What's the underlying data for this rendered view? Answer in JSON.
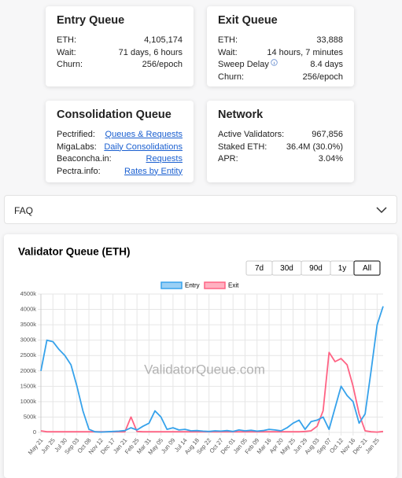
{
  "cards": [
    {
      "title": "Entry Queue",
      "rows": [
        [
          "ETH:",
          "4,105,174"
        ],
        [
          "Wait:",
          "71 days, 6 hours"
        ],
        [
          "Churn:",
          "256/epoch"
        ]
      ]
    },
    {
      "title": "Exit Queue",
      "rows": [
        [
          "ETH:",
          "33,888"
        ],
        [
          "Wait:",
          "14 hours, 7 minutes"
        ],
        [
          "Sweep Delay",
          "8.4 days"
        ],
        [
          "Churn:",
          "256/epoch"
        ]
      ]
    },
    {
      "title": "Consolidation Queue",
      "rows": [
        [
          "Pectrified:",
          "Queues & Requests"
        ],
        [
          "MigaLabs:",
          "Daily Consolidations"
        ],
        [
          "Beaconcha.in:",
          "Requests"
        ],
        [
          "Pectra.info:",
          "Rates by Entity"
        ]
      ]
    },
    {
      "title": "Network",
      "rows": [
        [
          "Active Validators:",
          "967,856"
        ],
        [
          "Staked ETH:",
          "36.4M (30.0%)"
        ],
        [
          "APR:",
          "3.04%"
        ]
      ]
    }
  ],
  "faq": {
    "label": "FAQ"
  },
  "chart_data": {
    "type": "line",
    "title": "Validator Queue (ETH)",
    "range_buttons": [
      "7d",
      "30d",
      "90d",
      "1y",
      "All"
    ],
    "selected_range": "All",
    "watermark": "ValidatorQueue.com",
    "categories": [
      "May 21",
      null,
      "Jun 25",
      null,
      "Jul 30",
      null,
      "Sep 03",
      null,
      "Oct 08",
      null,
      "Nov 12",
      null,
      "Dec 17",
      null,
      "Jan 21",
      null,
      "Feb 25",
      null,
      "Mar 31",
      null,
      "May 05",
      null,
      "Jun 09",
      null,
      "Jul 14",
      null,
      "Aug 18",
      null,
      "Sep 22",
      null,
      "Oct 27",
      null,
      "Dec 01",
      null,
      "Jan 05",
      null,
      "Feb 09",
      null,
      "Mar 16",
      null,
      "Apr 20",
      null,
      "May 25",
      null,
      "Jun 29",
      null,
      "Aug 03",
      null,
      "Sep 07",
      null,
      "Oct 12",
      null,
      "Nov 16",
      null,
      "Dec 21",
      null,
      "Jan 25",
      null
    ],
    "series": [
      {
        "name": "Entry",
        "color": "#36a2eb",
        "values": [
          2000000,
          3000000,
          2950000,
          2700000,
          2500000,
          2200000,
          1500000,
          700000,
          100000,
          20000,
          10000,
          20000,
          30000,
          40000,
          60000,
          150000,
          80000,
          200000,
          300000,
          700000,
          500000,
          100000,
          150000,
          80000,
          100000,
          50000,
          60000,
          40000,
          30000,
          50000,
          40000,
          60000,
          30000,
          80000,
          50000,
          70000,
          40000,
          60000,
          100000,
          80000,
          50000,
          150000,
          300000,
          400000,
          100000,
          350000,
          400000,
          500000,
          100000,
          800000,
          1500000,
          1200000,
          1000000,
          300000,
          600000,
          2000000,
          3500000,
          4100000
        ]
      },
      {
        "name": "Exit",
        "color": "#ff6384",
        "values": [
          50000,
          20000,
          20000,
          20000,
          20000,
          20000,
          20000,
          20000,
          20000,
          20000,
          20000,
          20000,
          20000,
          20000,
          20000,
          500000,
          30000,
          20000,
          20000,
          20000,
          20000,
          20000,
          20000,
          20000,
          20000,
          20000,
          20000,
          20000,
          20000,
          20000,
          20000,
          20000,
          20000,
          20000,
          20000,
          20000,
          20000,
          20000,
          20000,
          20000,
          20000,
          20000,
          20000,
          20000,
          30000,
          50000,
          200000,
          700000,
          2600000,
          2300000,
          2400000,
          2200000,
          1500000,
          600000,
          50000,
          20000,
          10000,
          30000
        ]
      }
    ],
    "ylim": [
      0,
      4500000
    ],
    "yticks": [
      0,
      {
        "value": 500000,
        "label": "500k"
      },
      {
        "value": 1000000,
        "label": "1000k"
      },
      {
        "value": 1500000,
        "label": "1500k"
      },
      {
        "value": 2000000,
        "label": "2000k"
      },
      {
        "value": 2500000,
        "label": "2500k"
      },
      {
        "value": 3000000,
        "label": "3000k"
      },
      {
        "value": 3500000,
        "label": "3500k"
      },
      {
        "value": 4000000,
        "label": "4000k"
      },
      {
        "value": 4500000,
        "label": "4500k"
      }
    ],
    "grid": true,
    "legend": "top"
  }
}
